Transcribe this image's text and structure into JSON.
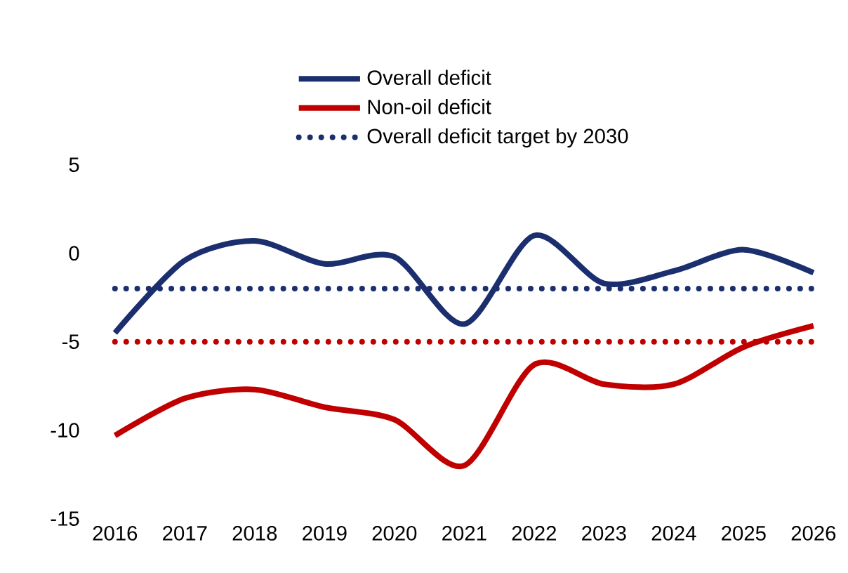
{
  "chart_data": {
    "type": "line",
    "categories": [
      "2016",
      "2017",
      "2018",
      "2019",
      "2020",
      "2021",
      "2022",
      "2023",
      "2024",
      "2025",
      "2026"
    ],
    "series": [
      {
        "name": "Overall deficit",
        "color": "#1b2f6e",
        "values": [
          -4.5,
          -0.4,
          0.7,
          -0.6,
          -0.2,
          -4.0,
          1.0,
          -1.7,
          -1.0,
          0.2,
          -1.1
        ]
      },
      {
        "name": "Non-oil deficit",
        "color": "#c00000",
        "values": [
          -10.3,
          -8.2,
          -7.7,
          -8.7,
          -9.4,
          -12.0,
          -6.3,
          -7.4,
          -7.4,
          -5.3,
          -4.1
        ]
      },
      {
        "name": "Overall deficit target by 2030",
        "color": "#1b2f6e",
        "line_style": "dotted",
        "values": [
          -2,
          -2,
          -2,
          -2,
          -2,
          -2,
          -2,
          -2,
          -2,
          -2,
          -2
        ]
      }
    ],
    "ylim": [
      -15,
      5
    ],
    "yticks": [
      -15,
      -10,
      -5,
      0,
      5
    ],
    "ref_lines": [
      {
        "axis": "y",
        "value": -5,
        "color": "#c00000",
        "line_style": "dotted"
      }
    ],
    "legend": "top",
    "grid": false,
    "marker": "none"
  }
}
